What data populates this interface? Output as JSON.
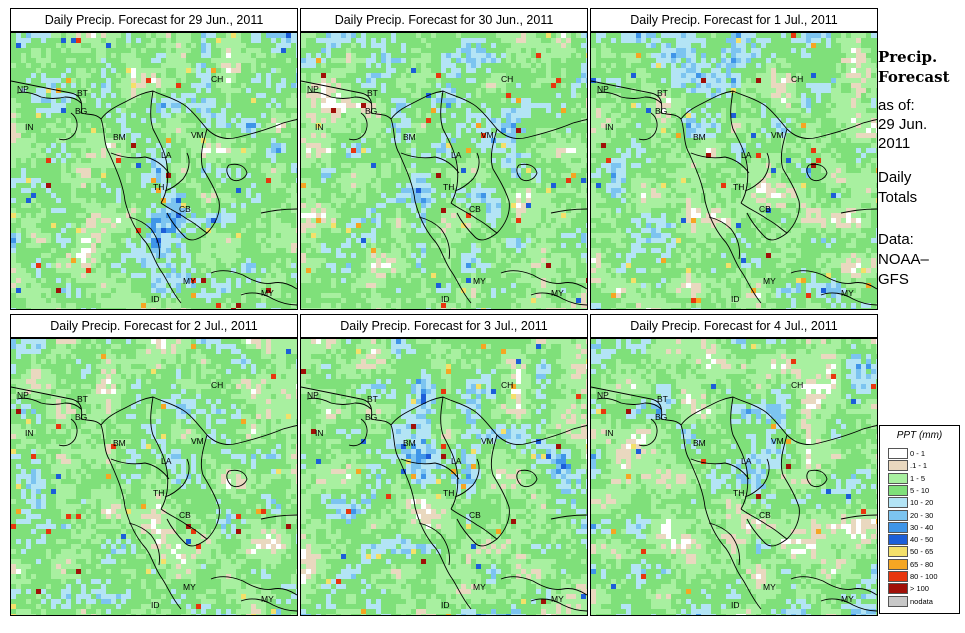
{
  "panels": [
    {
      "title": "Daily Precip. Forecast for  29 Jun., 2011",
      "seed": 11,
      "wet": 0.55,
      "heavy": 0.1,
      "labels": [
        "NP",
        "BT",
        "BG",
        "IN",
        "CH",
        "BM",
        "VM",
        "LA",
        "TH",
        "CB",
        "MY",
        "MY",
        "ID"
      ]
    },
    {
      "title": "Daily Precip. Forecast for  30 Jun., 2011",
      "seed": 23,
      "wet": 0.5,
      "heavy": 0.08,
      "labels": [
        "NP",
        "BT",
        "BG",
        "IN",
        "CH",
        "BM",
        "VM",
        "LA",
        "TH",
        "CB",
        "MY",
        "MY",
        "ID"
      ]
    },
    {
      "title": "Daily Precip. Forecast for  1 Jul., 2011",
      "seed": 37,
      "wet": 0.45,
      "heavy": 0.06,
      "labels": [
        "NP",
        "BT",
        "BG",
        "IN",
        "CH",
        "BM",
        "VM",
        "LA",
        "TH",
        "CB",
        "MY",
        "MY",
        "ID"
      ]
    },
    {
      "title": "Daily Precip. Forecast for  2 Jul., 2011",
      "seed": 41,
      "wet": 0.4,
      "heavy": 0.05,
      "labels": [
        "NP",
        "BT",
        "BG",
        "IN",
        "CH",
        "BM",
        "VM",
        "LA",
        "TH",
        "CB",
        "MY",
        "MY",
        "ID"
      ]
    },
    {
      "title": "Daily Precip. Forecast for  3 Jul., 2011",
      "seed": 53,
      "wet": 0.55,
      "heavy": 0.06,
      "labels": [
        "NP",
        "BT",
        "BG",
        "IN",
        "CH",
        "BM",
        "VM",
        "LA",
        "TH",
        "CB",
        "MY",
        "MY",
        "ID"
      ]
    },
    {
      "title": "Daily Precip. Forecast for  4 Jul., 2011",
      "seed": 67,
      "wet": 0.45,
      "heavy": 0.05,
      "labels": [
        "NP",
        "BT",
        "BG",
        "IN",
        "CH",
        "BM",
        "VM",
        "LA",
        "TH",
        "CB",
        "MY",
        "MY",
        "ID"
      ]
    }
  ],
  "sidebar": {
    "title_line1": "Precip.",
    "title_line2": "Forecast",
    "asof_line1": "as of:",
    "asof_line2": "29 Jun.",
    "asof_line3": "2011",
    "daily_line1": "Daily",
    "daily_line2": "Totals",
    "data_line1": "Data:",
    "data_line2": "NOAA–",
    "data_line3": "GFS"
  },
  "legend": {
    "title": "PPT (mm)",
    "items": [
      {
        "label": "0 - 1",
        "color": "#ffffff"
      },
      {
        "label": ".1 - 1",
        "color": "#e9d8bf"
      },
      {
        "label": "1 - 5",
        "color": "#a8f0a0"
      },
      {
        "label": "5 - 10",
        "color": "#7fe07a"
      },
      {
        "label": "10 - 20",
        "color": "#b3e4f5"
      },
      {
        "label": "20 - 30",
        "color": "#7cc4f0"
      },
      {
        "label": "30 - 40",
        "color": "#3f95e8"
      },
      {
        "label": "40 - 50",
        "color": "#1c5ed8"
      },
      {
        "label": "50 - 65",
        "color": "#f4e06a"
      },
      {
        "label": "65 - 80",
        "color": "#f5a623"
      },
      {
        "label": "80 - 100",
        "color": "#e8360e"
      },
      {
        "label": "> 100",
        "color": "#a01008"
      },
      {
        "label": "nodata",
        "color": "#c8c8c8"
      }
    ]
  }
}
